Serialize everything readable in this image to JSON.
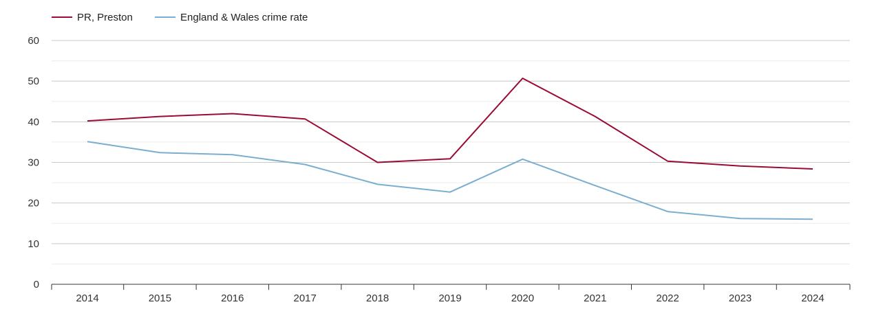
{
  "chart_data": {
    "type": "line",
    "title": "",
    "xlabel": "",
    "ylabel": "",
    "x": [
      "2014",
      "2015",
      "2016",
      "2017",
      "2018",
      "2019",
      "2020",
      "2021",
      "2022",
      "2023",
      "2024"
    ],
    "ylim": [
      0,
      60
    ],
    "yticks": [
      "0",
      "10",
      "20",
      "30",
      "40",
      "50",
      "60"
    ],
    "grid": true,
    "legend_position": "top-left",
    "series": [
      {
        "name": "PR, Preston",
        "color": "#9b0a33",
        "values": [
          40.2,
          41.3,
          42.0,
          40.7,
          30.0,
          30.9,
          50.7,
          41.3,
          30.3,
          29.1,
          28.4
        ]
      },
      {
        "name": "England & Wales crime rate",
        "color": "#7aaed0",
        "values": [
          35.1,
          32.4,
          31.9,
          29.5,
          24.6,
          22.7,
          30.8,
          24.3,
          17.9,
          16.2,
          16.0
        ]
      }
    ]
  }
}
